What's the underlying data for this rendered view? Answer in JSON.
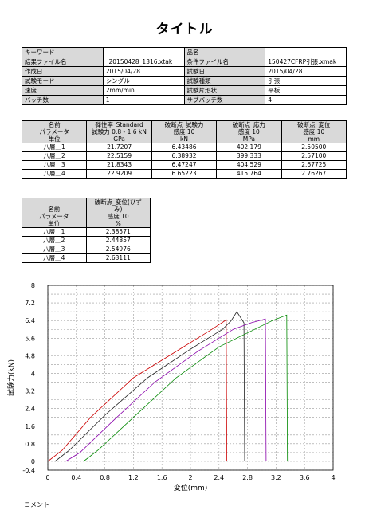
{
  "title": "タイトル",
  "info": [
    [
      "キーワード",
      "",
      "品名",
      ""
    ],
    [
      "結果ファイル名",
      "_20150428_1316.xtak",
      "条件ファイル名",
      "150427CFRP引張.xmak"
    ],
    [
      "作成日",
      "2015/04/28",
      "試験日",
      "2015/04/28"
    ],
    [
      "試験モード",
      "シングル",
      "試験種類",
      "引張"
    ],
    [
      "速度",
      "2mm/min",
      "試験片形状",
      "平板"
    ],
    [
      "バッチ数",
      "1",
      "サブバッチ数",
      "4"
    ]
  ],
  "results1": {
    "header": [
      [
        "名前",
        "弾性率_Standard",
        "破断点_試験力",
        "破断点_応力",
        "破断点_変位"
      ],
      [
        "パラメータ",
        "試験力 0.8 - 1.6 kN",
        "感度 10",
        "感度 10",
        "感度 10"
      ],
      [
        "単位",
        "GPa",
        "kN",
        "MPa",
        "mm"
      ]
    ],
    "rows": [
      [
        "八層＿1",
        "21.7207",
        "6.43486",
        "402.179",
        "2.50500"
      ],
      [
        "八層＿2",
        "22.5159",
        "6.38932",
        "399.333",
        "2.57100"
      ],
      [
        "八層＿3",
        "21.8343",
        "6.47247",
        "404.529",
        "2.67725"
      ],
      [
        "八層＿4",
        "22.9209",
        "6.65223",
        "415.764",
        "2.76267"
      ]
    ]
  },
  "results2": {
    "header": [
      [
        "",
        "破断点_変位(ひず"
      ],
      [
        "名前",
        "み)"
      ],
      [
        "パラメータ",
        "感度 10"
      ],
      [
        "単位",
        "%"
      ]
    ],
    "rows": [
      [
        "八層＿1",
        "2.38571"
      ],
      [
        "八層＿2",
        "2.44857"
      ],
      [
        "八層＿3",
        "2.54976"
      ],
      [
        "八層＿4",
        "2.63111"
      ]
    ]
  },
  "chart_data": {
    "type": "line",
    "xlabel": "変位(mm)",
    "ylabel": "試験力(kN)",
    "xlim": [
      0,
      4
    ],
    "ylim": [
      -0.4,
      8
    ],
    "xticks": [
      "0",
      "0.4",
      "0.8",
      "1.2",
      "1.6",
      "2",
      "2.4",
      "2.8",
      "3.2",
      "3.6",
      "4"
    ],
    "yticks": [
      "-0.4",
      "0",
      "0.4",
      "0.8",
      "1.2",
      "1.6",
      "2",
      "2.4",
      "2.8",
      "3.2",
      "3.6",
      "4",
      "4.4",
      "4.8",
      "5.2",
      "5.6",
      "6",
      "6.4",
      "6.8",
      "7.2",
      "7.6",
      "8"
    ],
    "ytick_values": [
      -0.4,
      0,
      0.4,
      0.8,
      1.2,
      1.6,
      2,
      2.4,
      2.8,
      3.2,
      3.6,
      4,
      4.4,
      4.8,
      5.2,
      5.6,
      6,
      6.4,
      6.8,
      7.2,
      7.6,
      8
    ],
    "series": [
      {
        "color": "#cc0000",
        "points": [
          [
            0,
            0
          ],
          [
            0.2,
            0.5
          ],
          [
            0.6,
            2.0
          ],
          [
            1.2,
            3.8
          ],
          [
            1.8,
            5.0
          ],
          [
            2.3,
            6.0
          ],
          [
            2.5,
            6.43
          ],
          [
            2.51,
            0
          ]
        ]
      },
      {
        "color": "#222222",
        "points": [
          [
            0.1,
            0
          ],
          [
            0.3,
            0.5
          ],
          [
            0.8,
            2.1
          ],
          [
            1.4,
            3.8
          ],
          [
            2.0,
            5.1
          ],
          [
            2.45,
            6.0
          ],
          [
            2.57,
            6.39
          ],
          [
            2.65,
            6.8
          ],
          [
            2.75,
            6.3
          ],
          [
            2.76,
            0
          ]
        ]
      },
      {
        "color": "#8800aa",
        "points": [
          [
            0.25,
            0
          ],
          [
            0.45,
            0.4
          ],
          [
            0.9,
            1.8
          ],
          [
            1.5,
            3.6
          ],
          [
            2.1,
            5.0
          ],
          [
            2.6,
            6.0
          ],
          [
            2.85,
            6.3
          ],
          [
            3.05,
            6.47
          ],
          [
            3.06,
            0
          ]
        ]
      },
      {
        "color": "#008800",
        "points": [
          [
            0.5,
            0
          ],
          [
            0.7,
            0.5
          ],
          [
            1.2,
            2.0
          ],
          [
            1.8,
            3.8
          ],
          [
            2.4,
            5.2
          ],
          [
            2.9,
            6.0
          ],
          [
            3.15,
            6.4
          ],
          [
            3.35,
            6.65
          ],
          [
            3.36,
            0
          ]
        ]
      }
    ]
  },
  "comment": "コメント"
}
